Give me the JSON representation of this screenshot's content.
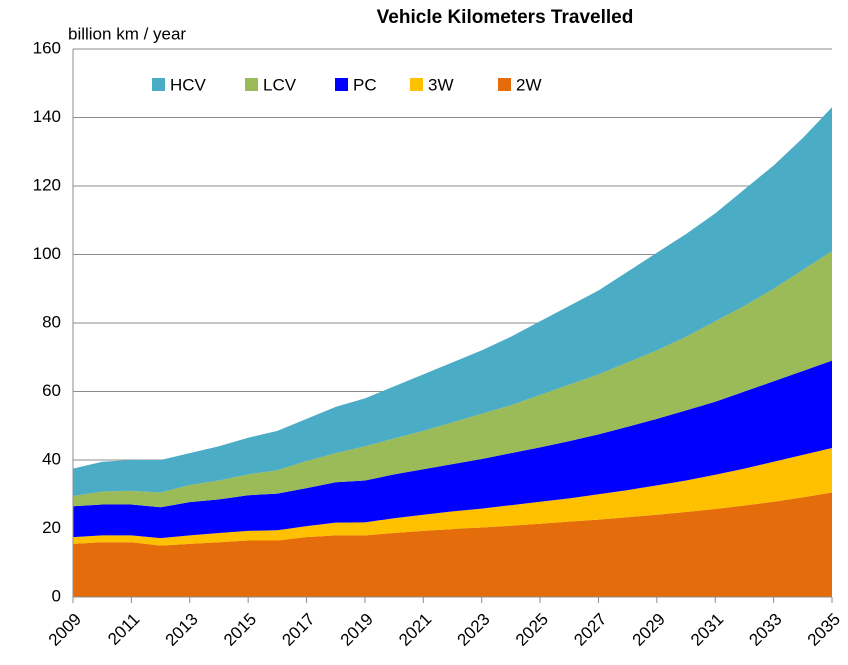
{
  "chart_data": {
    "type": "stacked-area",
    "title": "Vehicle Kilometers Travelled",
    "y_label": "billion km / year",
    "x": [
      2009,
      2010,
      2011,
      2012,
      2013,
      2014,
      2015,
      2016,
      2017,
      2018,
      2019,
      2020,
      2021,
      2022,
      2023,
      2024,
      2025,
      2026,
      2027,
      2028,
      2029,
      2030,
      2031,
      2032,
      2033,
      2034,
      2035
    ],
    "xlim": [
      2009,
      2035
    ],
    "xticks": [
      2009,
      2011,
      2013,
      2015,
      2017,
      2019,
      2021,
      2023,
      2025,
      2027,
      2029,
      2031,
      2033,
      2035
    ],
    "ylim": [
      0,
      160
    ],
    "yticks": [
      0,
      20,
      40,
      60,
      80,
      100,
      120,
      140,
      160
    ],
    "grid": true,
    "legend": "top",
    "series": [
      {
        "name": "HCV",
        "color": "#4bacc6",
        "values": [
          8,
          8.7,
          9,
          9.5,
          9.3,
          10,
          10.7,
          11.5,
          12.3,
          13.5,
          14,
          15.2,
          16.5,
          17.5,
          18.5,
          20,
          21.5,
          23,
          24.5,
          26.5,
          28.5,
          30,
          31.5,
          34,
          36,
          38.5,
          42
        ]
      },
      {
        "name": "LCV",
        "color": "#9bbb59",
        "values": [
          3,
          3.8,
          4,
          4.3,
          5,
          5.5,
          6.1,
          6.8,
          7.9,
          8.5,
          10,
          10.5,
          11.2,
          12.2,
          13.2,
          14,
          15.3,
          16.5,
          17.5,
          18.8,
          20,
          21.5,
          23.5,
          25,
          27,
          29.5,
          32
        ]
      },
      {
        "name": "PC",
        "color": "#0000ff",
        "values": [
          9,
          9,
          9,
          9,
          9.7,
          9.8,
          10.4,
          10.7,
          11.1,
          11.8,
          12.2,
          12.8,
          13.3,
          13.8,
          14.5,
          15.2,
          15.9,
          16.7,
          17.5,
          18.5,
          19.4,
          20.5,
          21.3,
          22.5,
          23.5,
          24.5,
          25.5
        ]
      },
      {
        "name": "3W",
        "color": "#ffc000",
        "values": [
          2,
          2,
          2,
          2.2,
          2.5,
          2.7,
          2.8,
          3,
          3.2,
          3.7,
          3.8,
          4.3,
          4.7,
          5.2,
          5.5,
          6,
          6.4,
          6.8,
          7.4,
          7.9,
          8.6,
          9.2,
          10,
          10.8,
          11.7,
          12.4,
          13
        ]
      },
      {
        "name": "2W",
        "color": "#e46c0a",
        "values": [
          15.5,
          16,
          16,
          15,
          15.5,
          16,
          16.5,
          16.5,
          17.5,
          18,
          18,
          18.7,
          19.3,
          19.8,
          20.3,
          20.8,
          21.4,
          22,
          22.6,
          23.3,
          24,
          24.8,
          25.7,
          26.7,
          27.8,
          29.1,
          30.5
        ]
      }
    ]
  }
}
